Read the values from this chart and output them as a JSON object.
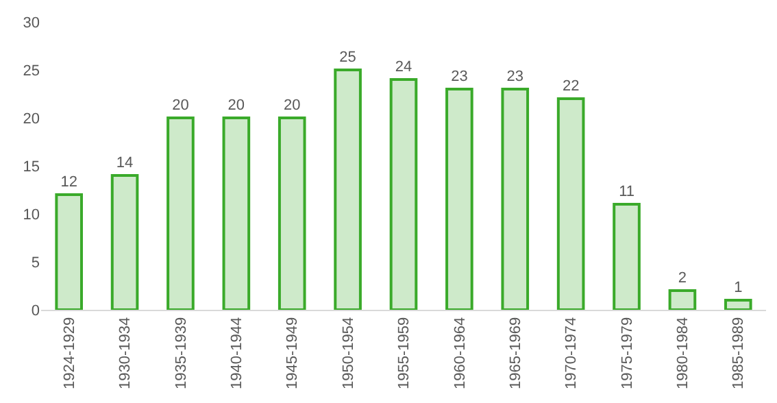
{
  "chart_data": {
    "type": "bar",
    "categories": [
      "1924-1929",
      "1930-1934",
      "1935-1939",
      "1940-1944",
      "1945-1949",
      "1950-1954",
      "1955-1959",
      "1960-1964",
      "1965-1969",
      "1970-1974",
      "1975-1979",
      "1980-1984",
      "1985-1989"
    ],
    "values": [
      12,
      14,
      20,
      20,
      20,
      25,
      24,
      23,
      23,
      22,
      11,
      2,
      1
    ],
    "color": "#3aaa2a",
    "ylim": [
      0,
      30
    ],
    "yticks": [
      0,
      5,
      10,
      15,
      20,
      25,
      30
    ],
    "data_labels": true
  }
}
